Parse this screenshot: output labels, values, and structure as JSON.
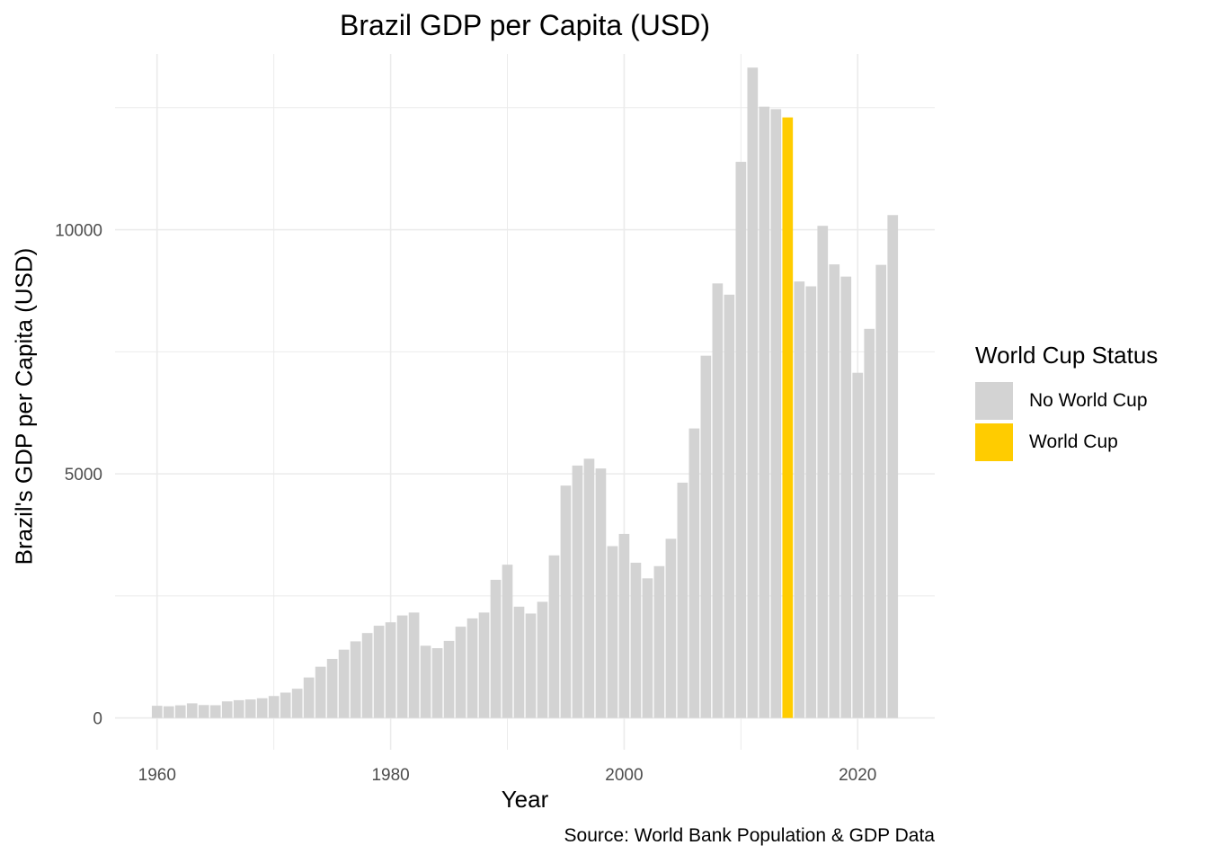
{
  "chart_data": {
    "type": "bar",
    "title": "Brazil GDP per Capita (USD)",
    "xlabel": "Year",
    "ylabel": "Brazil's GDP per Capita (USD)",
    "caption": "Source: World Bank Population & GDP Data",
    "xlim": [
      1956.4,
      2026.6
    ],
    "ylim": [
      -650,
      13600
    ],
    "x_ticks": [
      1960,
      1980,
      2000,
      2020
    ],
    "y_ticks": [
      0,
      5000,
      10000
    ],
    "grid": true,
    "legend_position": "right",
    "legend": {
      "title": "World Cup Status",
      "entries": [
        {
          "name": "No World Cup",
          "color": "#d3d3d3"
        },
        {
          "name": "World Cup",
          "color": "#ffcc00"
        }
      ]
    },
    "series": [
      {
        "name": "No World Cup",
        "color": "#d3d3d3"
      },
      {
        "name": "World Cup",
        "color": "#ffcc00"
      }
    ],
    "data": [
      {
        "x": 1960,
        "y": 250,
        "s": 0
      },
      {
        "x": 1961,
        "y": 240,
        "s": 0
      },
      {
        "x": 1962,
        "y": 260,
        "s": 0
      },
      {
        "x": 1963,
        "y": 300,
        "s": 0
      },
      {
        "x": 1964,
        "y": 265,
        "s": 0
      },
      {
        "x": 1965,
        "y": 262,
        "s": 0
      },
      {
        "x": 1966,
        "y": 340,
        "s": 0
      },
      {
        "x": 1967,
        "y": 365,
        "s": 0
      },
      {
        "x": 1968,
        "y": 380,
        "s": 0
      },
      {
        "x": 1969,
        "y": 405,
        "s": 0
      },
      {
        "x": 1970,
        "y": 450,
        "s": 0
      },
      {
        "x": 1971,
        "y": 520,
        "s": 0
      },
      {
        "x": 1972,
        "y": 600,
        "s": 0
      },
      {
        "x": 1973,
        "y": 830,
        "s": 0
      },
      {
        "x": 1974,
        "y": 1050,
        "s": 0
      },
      {
        "x": 1975,
        "y": 1210,
        "s": 0
      },
      {
        "x": 1976,
        "y": 1400,
        "s": 0
      },
      {
        "x": 1977,
        "y": 1570,
        "s": 0
      },
      {
        "x": 1978,
        "y": 1740,
        "s": 0
      },
      {
        "x": 1979,
        "y": 1890,
        "s": 0
      },
      {
        "x": 1980,
        "y": 1960,
        "s": 0
      },
      {
        "x": 1981,
        "y": 2100,
        "s": 0
      },
      {
        "x": 1982,
        "y": 2160,
        "s": 0
      },
      {
        "x": 1983,
        "y": 1480,
        "s": 0
      },
      {
        "x": 1984,
        "y": 1430,
        "s": 0
      },
      {
        "x": 1985,
        "y": 1580,
        "s": 0
      },
      {
        "x": 1986,
        "y": 1870,
        "s": 0
      },
      {
        "x": 1987,
        "y": 2040,
        "s": 0
      },
      {
        "x": 1988,
        "y": 2160,
        "s": 0
      },
      {
        "x": 1989,
        "y": 2830,
        "s": 0
      },
      {
        "x": 1990,
        "y": 3140,
        "s": 0
      },
      {
        "x": 1991,
        "y": 2280,
        "s": 0
      },
      {
        "x": 1992,
        "y": 2140,
        "s": 0
      },
      {
        "x": 1993,
        "y": 2380,
        "s": 0
      },
      {
        "x": 1994,
        "y": 3330,
        "s": 0
      },
      {
        "x": 1995,
        "y": 4760,
        "s": 0
      },
      {
        "x": 1996,
        "y": 5170,
        "s": 0
      },
      {
        "x": 1997,
        "y": 5310,
        "s": 0
      },
      {
        "x": 1998,
        "y": 5110,
        "s": 0
      },
      {
        "x": 1999,
        "y": 3520,
        "s": 0
      },
      {
        "x": 2000,
        "y": 3770,
        "s": 0
      },
      {
        "x": 2001,
        "y": 3180,
        "s": 0
      },
      {
        "x": 2002,
        "y": 2860,
        "s": 0
      },
      {
        "x": 2003,
        "y": 3110,
        "s": 0
      },
      {
        "x": 2004,
        "y": 3670,
        "s": 0
      },
      {
        "x": 2005,
        "y": 4820,
        "s": 0
      },
      {
        "x": 2006,
        "y": 5930,
        "s": 0
      },
      {
        "x": 2007,
        "y": 7420,
        "s": 0
      },
      {
        "x": 2008,
        "y": 8900,
        "s": 0
      },
      {
        "x": 2009,
        "y": 8670,
        "s": 0
      },
      {
        "x": 2010,
        "y": 11390,
        "s": 0
      },
      {
        "x": 2011,
        "y": 13320,
        "s": 0
      },
      {
        "x": 2012,
        "y": 12520,
        "s": 0
      },
      {
        "x": 2013,
        "y": 12470,
        "s": 0
      },
      {
        "x": 2014,
        "y": 12300,
        "s": 1
      },
      {
        "x": 2015,
        "y": 8940,
        "s": 0
      },
      {
        "x": 2016,
        "y": 8840,
        "s": 0
      },
      {
        "x": 2017,
        "y": 10080,
        "s": 0
      },
      {
        "x": 2018,
        "y": 9290,
        "s": 0
      },
      {
        "x": 2019,
        "y": 9040,
        "s": 0
      },
      {
        "x": 2020,
        "y": 7070,
        "s": 0
      },
      {
        "x": 2021,
        "y": 7970,
        "s": 0
      },
      {
        "x": 2022,
        "y": 9280,
        "s": 0
      },
      {
        "x": 2023,
        "y": 10300,
        "s": 0
      }
    ]
  }
}
